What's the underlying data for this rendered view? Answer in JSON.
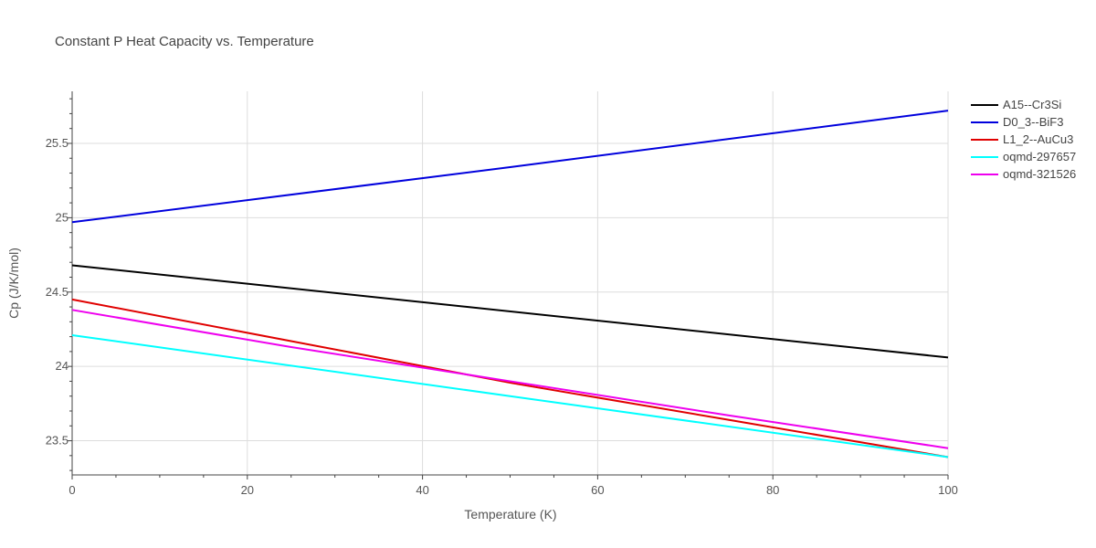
{
  "chart_data": {
    "type": "line",
    "title": "Constant P Heat Capacity vs. Temperature",
    "xlabel": "Temperature (K)",
    "ylabel": "Cp (J/K/mol)",
    "xlim": [
      0,
      100
    ],
    "ylim": [
      23.27,
      25.85
    ],
    "x_ticks": [
      0,
      20,
      40,
      60,
      80,
      100
    ],
    "x_tick_labels": [
      "0",
      "20",
      "40",
      "60",
      "80",
      "100"
    ],
    "y_ticks": [
      23.5,
      24,
      24.5,
      25,
      25.5
    ],
    "y_tick_labels": [
      "23.5",
      "24",
      "24.5",
      "25",
      "25.5"
    ],
    "grid": true,
    "legend_position": "top-right",
    "series": [
      {
        "name": "A15--Cr3Si",
        "color": "#000000",
        "x": [
          0,
          100
        ],
        "y": [
          24.68,
          24.06
        ]
      },
      {
        "name": "D0_3--BiF3",
        "color": "#0000dd",
        "x": [
          0,
          50,
          100
        ],
        "y": [
          24.97,
          25.34,
          25.72
        ]
      },
      {
        "name": "L1_2--AuCu3",
        "color": "#e00000",
        "x": [
          0,
          25,
          50,
          75,
          100
        ],
        "y": [
          24.45,
          24.17,
          23.89,
          23.64,
          23.39
        ]
      },
      {
        "name": "oqmd-297657",
        "color": "#00ffff",
        "x": [
          0,
          50,
          100
        ],
        "y": [
          24.21,
          23.8,
          23.39
        ]
      },
      {
        "name": "oqmd-321526",
        "color": "#ee00ee",
        "x": [
          0,
          25,
          50,
          75,
          100
        ],
        "y": [
          24.38,
          24.13,
          23.9,
          23.67,
          23.45
        ]
      }
    ]
  }
}
